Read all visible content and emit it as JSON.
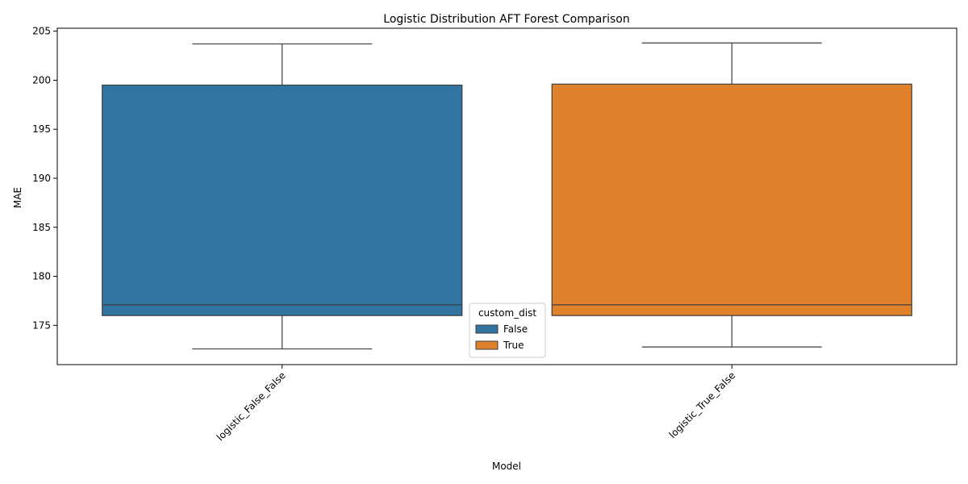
{
  "chart_data": {
    "type": "box",
    "title": "Logistic Distribution AFT Forest Comparison",
    "xlabel": "Model",
    "ylabel": "MAE",
    "categories": [
      "logistic_False_False",
      "logistic_True_False"
    ],
    "ylim": [
      171,
      205.3
    ],
    "yticks": [
      175,
      180,
      185,
      190,
      195,
      200,
      205
    ],
    "legend": {
      "title": "custom_dist",
      "placement": "bottom-center",
      "entries": [
        {
          "label": "False",
          "color": "#3274a1"
        },
        {
          "label": "True",
          "color": "#e1812c"
        }
      ]
    },
    "series": [
      {
        "name": "False",
        "category": "logistic_False_False",
        "color": "#3274a1",
        "whisker_low": 172.6,
        "q1": 176.0,
        "median": 177.1,
        "q3": 199.5,
        "whisker_high": 203.7
      },
      {
        "name": "True",
        "category": "logistic_True_False",
        "color": "#e1812c",
        "whisker_low": 172.8,
        "q1": 176.0,
        "median": 177.1,
        "q3": 199.6,
        "whisker_high": 203.8
      }
    ],
    "grid": false
  }
}
